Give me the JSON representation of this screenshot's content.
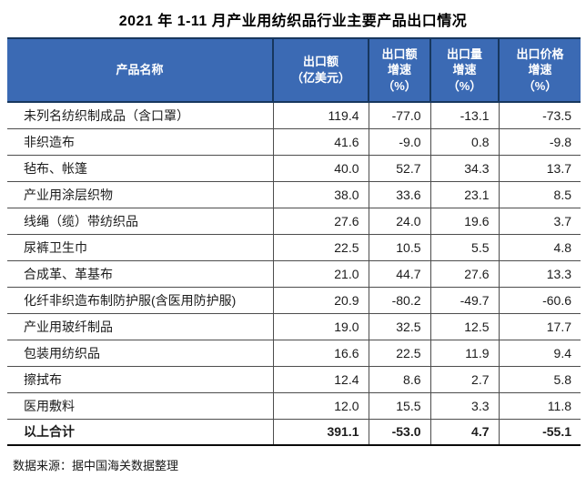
{
  "title": "2021 年 1-11 月产业用纺织品行业主要产品出口情况",
  "table": {
    "columns": [
      "产品名称",
      "出口额\n（亿美元）",
      "出口额\n增速\n（%）",
      "出口量\n增速\n（%）",
      "出口价格\n增速\n（%）"
    ],
    "rows": [
      [
        "未列名纺织制成品（含口罩）",
        "119.4",
        "-77.0",
        "-13.1",
        "-73.5"
      ],
      [
        "非织造布",
        "41.6",
        "-9.0",
        "0.8",
        "-9.8"
      ],
      [
        "毡布、帐篷",
        "40.0",
        "52.7",
        "34.3",
        "13.7"
      ],
      [
        "产业用涂层织物",
        "38.0",
        "33.6",
        "23.1",
        "8.5"
      ],
      [
        "线绳（缆）带纺织品",
        "27.6",
        "24.0",
        "19.6",
        "3.7"
      ],
      [
        "尿裤卫生巾",
        "22.5",
        "10.5",
        "5.5",
        "4.8"
      ],
      [
        "合成革、革基布",
        "21.0",
        "44.7",
        "27.6",
        "13.3"
      ],
      [
        "化纤非织造布制防护服(含医用防护服)",
        "20.9",
        "-80.2",
        "-49.7",
        "-60.6"
      ],
      [
        "产业用玻纤制品",
        "19.0",
        "32.5",
        "12.5",
        "17.7"
      ],
      [
        "包装用纺织品",
        "16.6",
        "22.5",
        "11.9",
        "9.4"
      ],
      [
        "擦拭布",
        "12.4",
        "8.6",
        "2.7",
        "5.8"
      ],
      [
        "医用敷料",
        "12.0",
        "15.5",
        "3.3",
        "11.8"
      ]
    ],
    "total_row": [
      "以上合计",
      "391.1",
      "-53.0",
      "4.7",
      "-55.1"
    ]
  },
  "footer": {
    "source": "数据来源：据中国海关数据整理"
  },
  "colors": {
    "header_bg": "#3b6ab4",
    "header_border": "#17375e",
    "row_border": "#4d4d4d",
    "text": "#1c1c1c"
  }
}
